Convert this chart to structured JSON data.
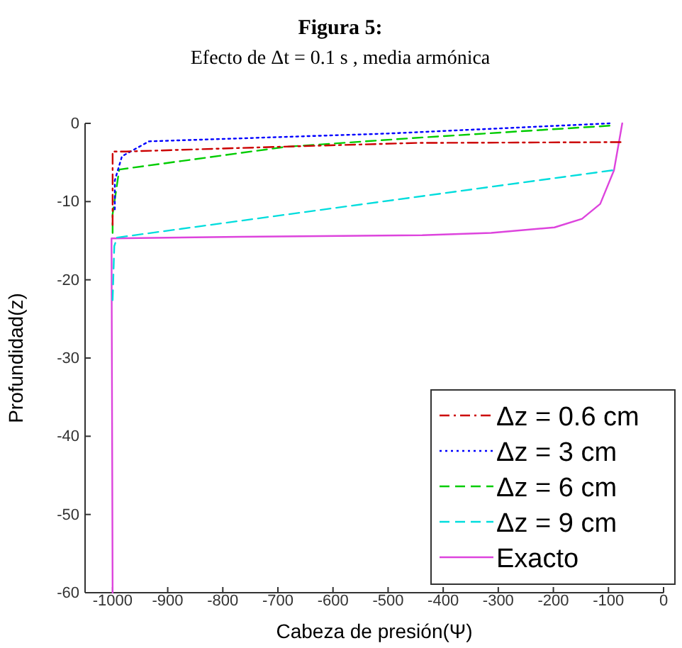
{
  "chart_data": {
    "type": "line",
    "title": "Figura 5:",
    "subtitle": "Efecto de Δt = 0.1 s , media armónica",
    "xlabel": "Cabeza de presión(Ψ)",
    "ylabel": "Profundidad(z)",
    "xlim": [
      -1050,
      0
    ],
    "ylim": [
      -60,
      0
    ],
    "xticks": [
      -1000,
      -900,
      -800,
      -700,
      -600,
      -500,
      -400,
      -300,
      -200,
      -100,
      0
    ],
    "yticks": [
      -60,
      -50,
      -40,
      -30,
      -20,
      -10,
      0
    ],
    "legend": "bottom right",
    "grid": false,
    "series": [
      {
        "name": "Δz = 0.6 cm",
        "color": "#cc0000",
        "line_style": "dashdot",
        "x": [
          -78,
          -450,
          -700,
          -975,
          -1000,
          -1000
        ],
        "values": [
          -2.4,
          -2.5,
          -3,
          -3.6,
          -3.6,
          -13
        ]
      },
      {
        "name": "Δz = 3 cm",
        "color": "#0000ff",
        "line_style": "dotted",
        "x": [
          -98,
          -500,
          -934,
          -983,
          -996,
          -996
        ],
        "values": [
          0,
          -1.3,
          -2.3,
          -4.2,
          -7.3,
          -11
        ]
      },
      {
        "name": "Δz = 6 cm",
        "color": "#00cc00",
        "line_style": "dashed",
        "x": [
          -98,
          -438,
          -686,
          -988,
          -1000,
          -1000
        ],
        "values": [
          -0.3,
          -1.8,
          -3,
          -5.9,
          -11.6,
          -14
        ]
      },
      {
        "name": "Δz = 9 cm",
        "color": "#00dddd",
        "line_style": "dashed",
        "x": [
          -93,
          -992,
          -997,
          -1000
        ],
        "values": [
          -6,
          -14.6,
          -15.7,
          -22.6
        ]
      },
      {
        "name": "Exacto",
        "color": "#dd44dd",
        "line_style": "solid",
        "x": [
          -75,
          -90,
          -115,
          -148,
          -198,
          -313,
          -438,
          -768,
          -1002,
          -1000
        ],
        "values": [
          0,
          -6,
          -10.3,
          -12.2,
          -13.3,
          -14,
          -14.3,
          -14.5,
          -14.7,
          -60
        ]
      }
    ]
  }
}
